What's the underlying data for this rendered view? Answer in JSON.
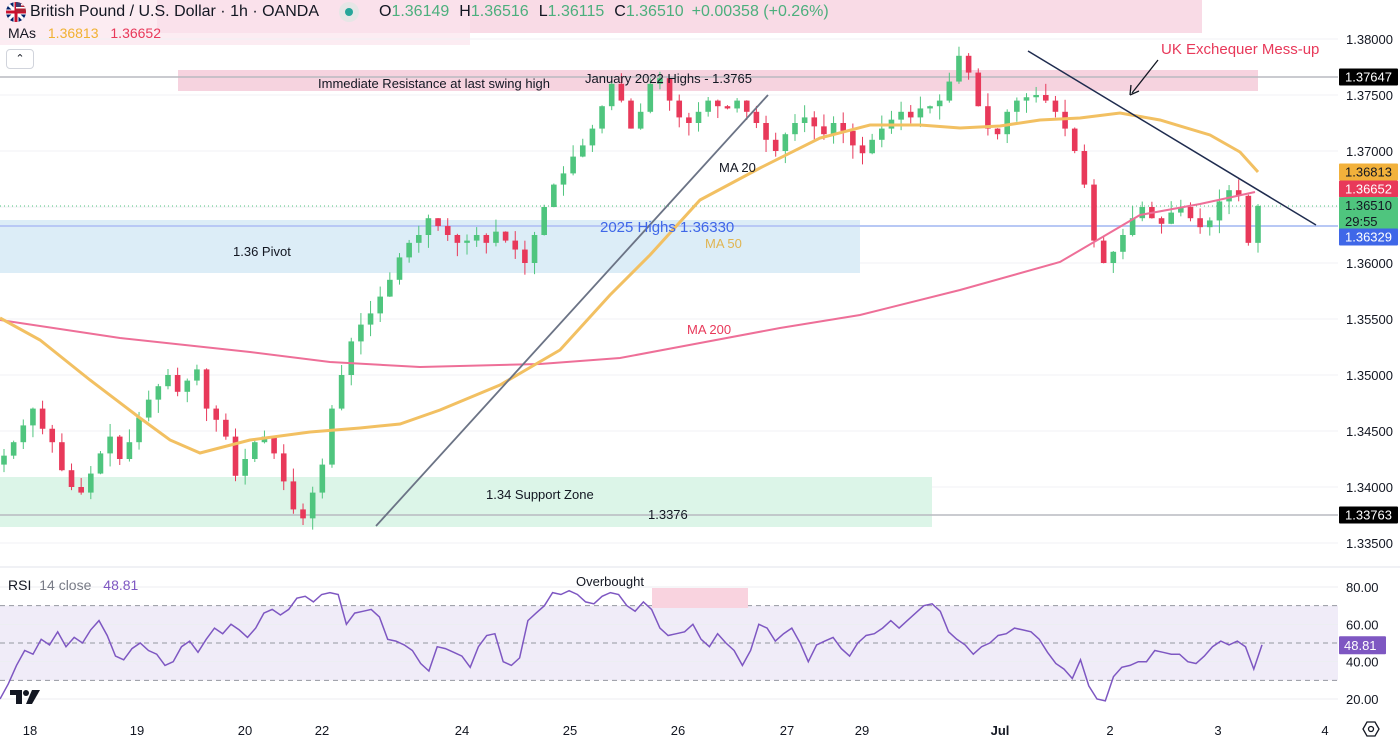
{
  "header": {
    "symbol_title": "British Pound / U.S. Dollar · 1h · OANDA",
    "ohlc": [
      {
        "label": "O",
        "value": "1.36149"
      },
      {
        "label": "H",
        "value": "1.36516"
      },
      {
        "label": "L",
        "value": "1.36115"
      },
      {
        "label": "C",
        "value": "1.36510"
      }
    ],
    "change": "+0.00358 (+0.26%)",
    "mas_label": "MAs",
    "ma_values": [
      "1.36813",
      "1.36652"
    ],
    "collapse_icon": "chevron-up-icon"
  },
  "colors": {
    "up": "#4fc57e",
    "down": "#e8395a",
    "ma20": "#f2c062",
    "ma200": "#ee6f98",
    "trendline": "#6b7385",
    "downtrend": "#1f2c4f",
    "resistance_zone": "#f6d3df",
    "pivot_zone": "#dcedf7",
    "support_zone": "#dcf5e8",
    "rsi_line": "#7e57c2",
    "rsi_band": "#f0ecf8",
    "annotation_red": "#e8395a",
    "annotation_blue": "#3f67e8"
  },
  "chart_data": [
    {
      "type": "candlestick",
      "title": "British Pound / U.S. Dollar · 1h · OANDA",
      "xlabel": "",
      "ylabel": "Price",
      "ylim": [
        1.3325,
        1.381
      ],
      "x_tick_labels": [
        "18",
        "19",
        "20",
        "22",
        "24",
        "25",
        "26",
        "27",
        "29",
        "Jul",
        "2",
        "3",
        "4"
      ],
      "y_tick_labels": [
        "1.38000",
        "1.37500",
        "1.37000",
        "1.36000",
        "1.35500",
        "1.35000",
        "1.34500",
        "1.34000",
        "1.33500"
      ],
      "price_labels": [
        {
          "value": "1.37647",
          "bg": "#000000",
          "fg": "#ffffff"
        },
        {
          "value": "1.36813",
          "bg": "#f2b13b",
          "fg": "#131722"
        },
        {
          "value": "1.36652",
          "bg": "#e8395a",
          "fg": "#ffffff"
        },
        {
          "value": "1.36510",
          "sub": "29:55",
          "bg": "#4fc57e",
          "fg": "#131722"
        },
        {
          "value": "1.36329",
          "bg": "#3f67e8",
          "fg": "#ffffff"
        },
        {
          "value": "1.33763",
          "bg": "#000000",
          "fg": "#ffffff"
        }
      ],
      "last_price": 1.3651,
      "countdown": "29:55",
      "series": [
        {
          "name": "MA 20 (50-period displayed as MA 20 label)",
          "last": 1.36813
        },
        {
          "name": "MA 200",
          "last": 1.36652
        }
      ],
      "close_path": [
        1.3428,
        1.344,
        1.3455,
        1.347,
        1.3452,
        1.344,
        1.3415,
        1.34,
        1.3395,
        1.3412,
        1.343,
        1.3445,
        1.3425,
        1.344,
        1.3462,
        1.3478,
        1.349,
        1.35,
        1.3485,
        1.3495,
        1.3505,
        1.347,
        1.346,
        1.3445,
        1.341,
        1.3425,
        1.344,
        1.3445,
        1.343,
        1.3405,
        1.338,
        1.3372,
        1.3395,
        1.342,
        1.347,
        1.35,
        1.353,
        1.3545,
        1.3555,
        1.357,
        1.3585,
        1.3605,
        1.3618,
        1.3625,
        1.364,
        1.3633,
        1.3625,
        1.3618,
        1.362,
        1.3625,
        1.3618,
        1.3628,
        1.362,
        1.3612,
        1.36,
        1.3625,
        1.365,
        1.367,
        1.368,
        1.3695,
        1.3705,
        1.372,
        1.374,
        1.376,
        1.3745,
        1.372,
        1.3735,
        1.376,
        1.3765,
        1.3745,
        1.373,
        1.3725,
        1.3735,
        1.3745,
        1.374,
        1.3738,
        1.3745,
        1.3735,
        1.3725,
        1.371,
        1.37,
        1.3715,
        1.3725,
        1.373,
        1.3722,
        1.3715,
        1.3725,
        1.3718,
        1.3705,
        1.3698,
        1.371,
        1.372,
        1.3728,
        1.3735,
        1.373,
        1.3738,
        1.374,
        1.3745,
        1.3762,
        1.3785,
        1.377,
        1.374,
        1.372,
        1.3715,
        1.3735,
        1.3745,
        1.3748,
        1.375,
        1.3745,
        1.3735,
        1.372,
        1.37,
        1.367,
        1.362,
        1.36,
        1.361,
        1.3625,
        1.364,
        1.365,
        1.364,
        1.3635,
        1.3645,
        1.365,
        1.364,
        1.3632,
        1.3638,
        1.3655,
        1.3665,
        1.366,
        1.3618,
        1.3651
      ]
    },
    {
      "type": "line",
      "title": "RSI 14 close",
      "ylim": [
        15,
        85
      ],
      "y_tick_labels": [
        "80.00",
        "60.00",
        "40.00",
        "20.00"
      ],
      "bands": {
        "upper": 70,
        "middle": 50,
        "lower": 30
      },
      "last": 48.81,
      "values": [
        20,
        28,
        38,
        46,
        44,
        52,
        49,
        56,
        48,
        53,
        50,
        57,
        62,
        54,
        43,
        41,
        47,
        50,
        46,
        44,
        38,
        40,
        48,
        51,
        45,
        52,
        58,
        55,
        60,
        57,
        53,
        58,
        66,
        68,
        65,
        68,
        74,
        75,
        72,
        76,
        77,
        76,
        60,
        66,
        67,
        68,
        64,
        52,
        51,
        49,
        46,
        39,
        35,
        48,
        47,
        45,
        43,
        37,
        48,
        54,
        55,
        40,
        38,
        42,
        62,
        66,
        70,
        77,
        76,
        78,
        76,
        72,
        71,
        75,
        77,
        76,
        70,
        67,
        72,
        68,
        58,
        54,
        55,
        56,
        60,
        52,
        48,
        55,
        50,
        46,
        38,
        46,
        60,
        58,
        51,
        55,
        58,
        50,
        40,
        49,
        51,
        53,
        47,
        43,
        50,
        54,
        55,
        58,
        62,
        58,
        62,
        66,
        70,
        71,
        67,
        56,
        52,
        49,
        44,
        48,
        50,
        54,
        55,
        58,
        57,
        56,
        52,
        45,
        39,
        36,
        31,
        41,
        27,
        20,
        19,
        32,
        37,
        38,
        40,
        40,
        46,
        45,
        44,
        44,
        40,
        39,
        43,
        48,
        51,
        49,
        51,
        48,
        36,
        49
      ]
    }
  ],
  "annotations": {
    "resistance_label": "Immediate Resistance at last swing high",
    "jan_highs_label": "January 2022 Highs - 1.3765",
    "uk_exchequer": "UK Exchequer Mess-up",
    "pivot_label": "1.36 Pivot",
    "highs_2025_label": "2025 Highs 1.36330",
    "ma20_label": "MA 20",
    "ma50_label": "MA 50",
    "ma200_label": "MA 200",
    "support_label": "1.34 Support Zone",
    "support_level_label": "1.3376",
    "overbought_label": "Overbought"
  },
  "rsi_legend": {
    "label": "RSI",
    "params": "14 close",
    "value": "48.81"
  },
  "footer": {
    "logo": "tradingview-logo",
    "settings_icon": "gear-hexagon-icon"
  }
}
